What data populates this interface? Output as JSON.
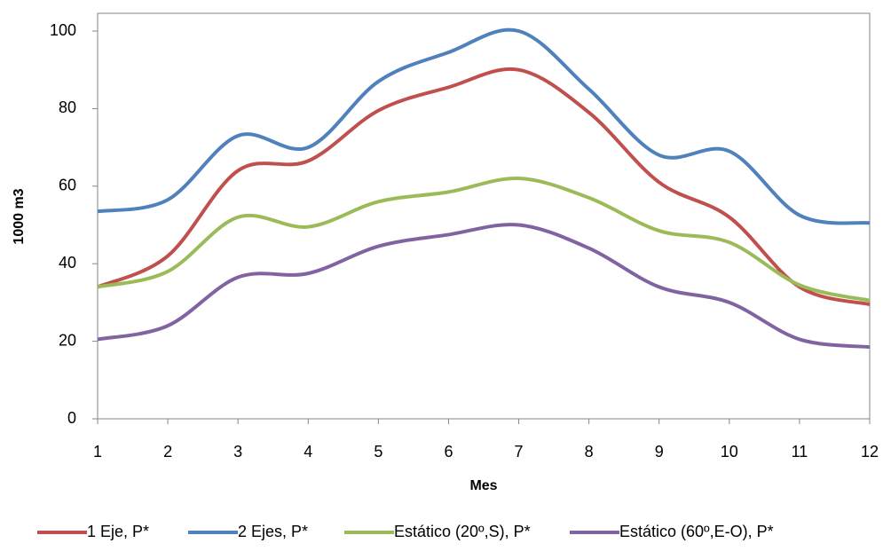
{
  "chart_data": {
    "type": "line",
    "x_label": "Mes",
    "y_label": "1000 m3",
    "x": [
      1,
      2,
      3,
      4,
      5,
      6,
      7,
      8,
      9,
      10,
      11,
      12
    ],
    "xlim": [
      1,
      12
    ],
    "xticks": [
      1,
      2,
      3,
      4,
      5,
      6,
      7,
      8,
      9,
      10,
      11,
      12
    ],
    "ylim": [
      0,
      100
    ],
    "yticks": [
      0,
      20,
      40,
      60,
      80,
      100
    ],
    "grid": false,
    "smooth": true,
    "legend": "bottom",
    "series": [
      {
        "name": "1 Eje, P*",
        "color": "#c0504d",
        "values": [
          34,
          42,
          64,
          66.5,
          79.5,
          85.5,
          90,
          79,
          61,
          52,
          34,
          29.5
        ]
      },
      {
        "name": "2 Ejes, P*",
        "color": "#4f81bd",
        "values": [
          53.5,
          56.5,
          73,
          70,
          87,
          94.5,
          100,
          85,
          68,
          69,
          52.5,
          50.5
        ]
      },
      {
        "name": "Estático (20º,S), P*",
        "color": "#9bbb59",
        "values": [
          34,
          38,
          52,
          49.5,
          56,
          58.5,
          62,
          57,
          48.5,
          45.5,
          34.5,
          30.5
        ]
      },
      {
        "name": "Estático (60º,E-O), P*",
        "color": "#8064a2",
        "values": [
          20.5,
          24,
          36.5,
          37.5,
          44.5,
          47.5,
          50,
          44,
          34,
          30,
          20.5,
          18.5
        ]
      }
    ]
  }
}
